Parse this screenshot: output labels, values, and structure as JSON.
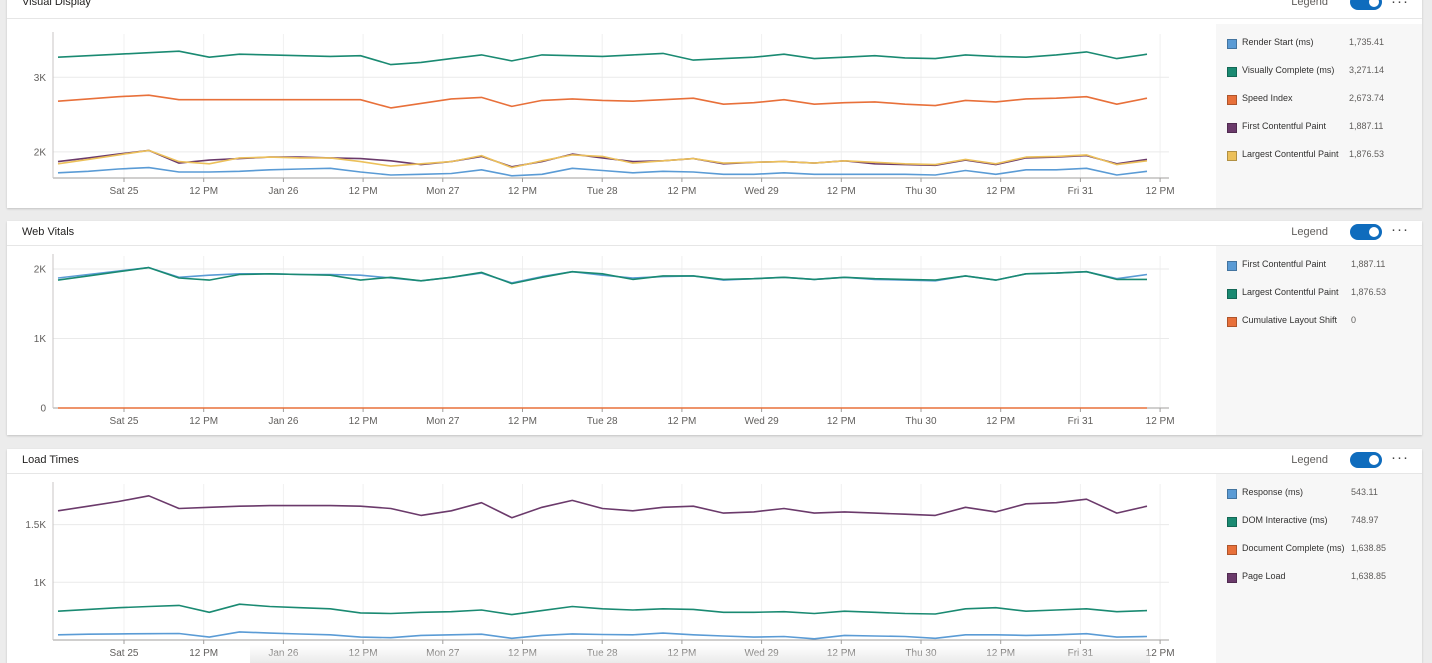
{
  "colors": {
    "blue": "#5a9bd5",
    "green": "#1a8a72",
    "orange": "#e8703a",
    "purple": "#6b3a6b",
    "yellow": "#ecc05a",
    "accent": "#0f6cbd"
  },
  "x_ticks": [
    "Sat 25",
    "12 PM",
    "Jan 26",
    "12 PM",
    "Mon 27",
    "12 PM",
    "Tue 28",
    "12 PM",
    "Wed 29",
    "12 PM",
    "Thu 30",
    "12 PM",
    "Fri 31",
    "12 PM"
  ],
  "panels": [
    {
      "title": "Visual Display",
      "legend_label": "Legend",
      "legend": [
        {
          "name": "Render Start (ms)",
          "value": "1,735.41",
          "color": "#5a9bd5"
        },
        {
          "name": "Visually Complete (ms)",
          "value": "3,271.14",
          "color": "#1a8a72"
        },
        {
          "name": "Speed Index",
          "value": "2,673.74",
          "color": "#e8703a"
        },
        {
          "name": "First Contentful Paint",
          "value": "1,887.11",
          "color": "#6b3a6b"
        },
        {
          "name": "Largest Contentful Paint",
          "value": "1,876.53",
          "color": "#ecc05a"
        }
      ]
    },
    {
      "title": "Web Vitals",
      "legend_label": "Legend",
      "legend": [
        {
          "name": "First Contentful Paint",
          "value": "1,887.11",
          "color": "#5a9bd5"
        },
        {
          "name": "Largest Contentful Paint",
          "value": "1,876.53",
          "color": "#1a8a72"
        },
        {
          "name": "Cumulative Layout Shift",
          "value": "0",
          "color": "#e8703a"
        }
      ]
    },
    {
      "title": "Load Times",
      "legend_label": "Legend",
      "legend": [
        {
          "name": "Response (ms)",
          "value": "543.11",
          "color": "#5a9bd5"
        },
        {
          "name": "DOM Interactive (ms)",
          "value": "748.97",
          "color": "#1a8a72"
        },
        {
          "name": "Document Complete (ms)",
          "value": "1,638.85",
          "color": "#e8703a"
        },
        {
          "name": "Page Load",
          "value": "1,638.85",
          "color": "#6b3a6b"
        }
      ]
    }
  ],
  "chart_data": [
    {
      "type": "line",
      "title": "Visual Display",
      "ylim": [
        1650,
        3500
      ],
      "yticks": [
        2000,
        3000
      ],
      "ytick_labels": [
        "2K",
        "3K"
      ],
      "series": [
        {
          "name": "Visually Complete (ms)",
          "color": "#1a8a72",
          "values": [
            3270,
            3290,
            3310,
            3330,
            3350,
            3270,
            3310,
            3300,
            3290,
            3280,
            3290,
            3170,
            3200,
            3250,
            3300,
            3220,
            3300,
            3290,
            3280,
            3300,
            3320,
            3230,
            3250,
            3270,
            3310,
            3250,
            3270,
            3290,
            3260,
            3250,
            3300,
            3280,
            3270,
            3300,
            3340,
            3250,
            3310
          ]
        },
        {
          "name": "Speed Index",
          "color": "#e8703a",
          "values": [
            2680,
            2710,
            2740,
            2760,
            2700,
            2700,
            2700,
            2700,
            2700,
            2700,
            2700,
            2590,
            2650,
            2710,
            2730,
            2610,
            2690,
            2710,
            2690,
            2680,
            2700,
            2720,
            2640,
            2660,
            2700,
            2640,
            2660,
            2670,
            2640,
            2620,
            2690,
            2670,
            2710,
            2720,
            2740,
            2640,
            2720
          ]
        },
        {
          "name": "First Contentful Paint",
          "color": "#6b3a6b",
          "values": [
            1870,
            1920,
            1970,
            2020,
            1850,
            1890,
            1910,
            1930,
            1930,
            1920,
            1910,
            1880,
            1830,
            1870,
            1940,
            1800,
            1870,
            1970,
            1920,
            1870,
            1880,
            1910,
            1840,
            1860,
            1870,
            1850,
            1880,
            1840,
            1830,
            1820,
            1890,
            1830,
            1920,
            1930,
            1950,
            1840,
            1900
          ]
        },
        {
          "name": "Largest Contentful Paint",
          "color": "#ecc05a",
          "values": [
            1840,
            1900,
            1960,
            2020,
            1870,
            1840,
            1920,
            1930,
            1920,
            1920,
            1870,
            1810,
            1840,
            1870,
            1950,
            1790,
            1880,
            1960,
            1940,
            1850,
            1880,
            1910,
            1850,
            1860,
            1870,
            1850,
            1880,
            1860,
            1840,
            1830,
            1900,
            1840,
            1930,
            1940,
            1960,
            1830,
            1880
          ]
        },
        {
          "name": "Render Start (ms)",
          "color": "#5a9bd5",
          "values": [
            1720,
            1740,
            1770,
            1790,
            1730,
            1730,
            1740,
            1760,
            1770,
            1780,
            1730,
            1690,
            1700,
            1710,
            1760,
            1680,
            1700,
            1780,
            1750,
            1720,
            1740,
            1730,
            1700,
            1700,
            1720,
            1700,
            1700,
            1700,
            1700,
            1690,
            1750,
            1700,
            1760,
            1760,
            1780,
            1690,
            1740
          ]
        }
      ]
    },
    {
      "type": "line",
      "title": "Web Vitals",
      "ylim": [
        0,
        2100
      ],
      "yticks": [
        0,
        1000,
        2000
      ],
      "ytick_labels": [
        "0",
        "1K",
        "2K"
      ],
      "series": [
        {
          "name": "First Contentful Paint",
          "color": "#5a9bd5",
          "values": [
            1870,
            1920,
            1970,
            2020,
            1880,
            1910,
            1930,
            1930,
            1920,
            1920,
            1910,
            1870,
            1830,
            1880,
            1940,
            1800,
            1890,
            1960,
            1910,
            1870,
            1890,
            1900,
            1840,
            1860,
            1880,
            1850,
            1880,
            1850,
            1840,
            1830,
            1900,
            1840,
            1930,
            1940,
            1960,
            1860,
            1920
          ]
        },
        {
          "name": "Largest Contentful Paint",
          "color": "#1a8a72",
          "values": [
            1840,
            1900,
            1960,
            2020,
            1870,
            1840,
            1920,
            1930,
            1920,
            1910,
            1840,
            1880,
            1830,
            1880,
            1950,
            1790,
            1880,
            1960,
            1930,
            1850,
            1900,
            1900,
            1850,
            1860,
            1880,
            1850,
            1880,
            1860,
            1850,
            1840,
            1900,
            1840,
            1930,
            1940,
            1960,
            1850,
            1850
          ]
        },
        {
          "name": "Cumulative Layout Shift",
          "color": "#e8703a",
          "values": [
            0,
            0,
            0,
            0,
            0,
            0,
            0,
            0,
            0,
            0,
            0,
            0,
            0,
            0,
            0,
            0,
            0,
            0,
            0,
            0,
            0,
            0,
            0,
            0,
            0,
            0,
            0,
            0,
            0,
            0,
            0,
            0,
            0,
            0,
            0,
            0,
            0
          ]
        }
      ]
    },
    {
      "type": "line",
      "title": "Load Times",
      "ylim": [
        500,
        1800
      ],
      "yticks": [
        1000,
        1500
      ],
      "ytick_labels": [
        "1K",
        "1.5K"
      ],
      "series": [
        {
          "name": "Page Load",
          "color": "#6b3a6b",
          "values": [
            1620,
            1660,
            1700,
            1750,
            1640,
            1650,
            1660,
            1665,
            1665,
            1665,
            1660,
            1640,
            1580,
            1620,
            1690,
            1560,
            1650,
            1710,
            1640,
            1620,
            1650,
            1660,
            1600,
            1610,
            1640,
            1600,
            1610,
            1600,
            1590,
            1580,
            1650,
            1610,
            1680,
            1690,
            1720,
            1600,
            1660
          ]
        },
        {
          "name": "DOM Interactive (ms)",
          "color": "#1a8a72",
          "values": [
            750,
            765,
            780,
            790,
            800,
            740,
            810,
            790,
            780,
            770,
            735,
            730,
            740,
            745,
            760,
            720,
            755,
            790,
            770,
            760,
            770,
            765,
            740,
            740,
            745,
            730,
            750,
            740,
            730,
            725,
            770,
            780,
            750,
            760,
            770,
            745,
            755
          ]
        },
        {
          "name": "Response (ms)",
          "color": "#5a9bd5",
          "values": [
            545,
            550,
            553,
            555,
            556,
            525,
            570,
            560,
            552,
            545,
            525,
            520,
            540,
            545,
            550,
            515,
            540,
            553,
            548,
            545,
            560,
            545,
            535,
            525,
            530,
            510,
            540,
            535,
            530,
            515,
            545,
            545,
            540,
            545,
            555,
            525,
            530
          ]
        }
      ]
    }
  ]
}
